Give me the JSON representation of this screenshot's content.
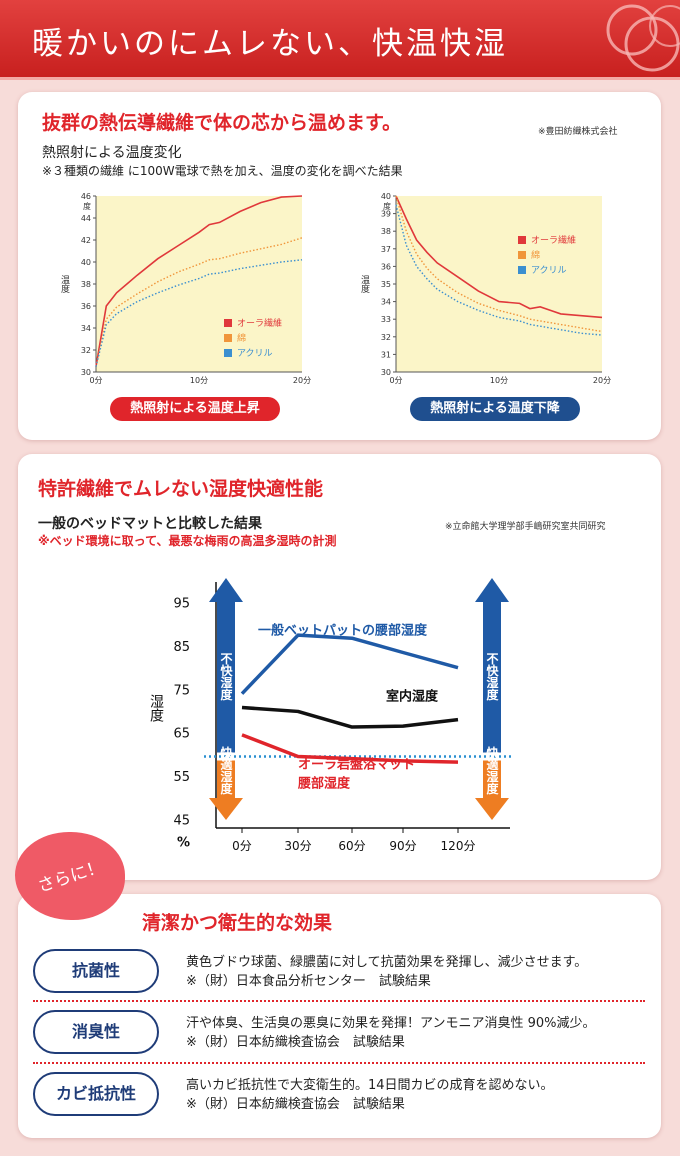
{
  "header": {
    "title": "暖かいのにムレない、快温快湿"
  },
  "section1": {
    "heading": "抜群の熱伝導繊維で体の芯から温めます。",
    "source": "※豊田紡織株式会社",
    "subtitle": "熱照射による温度変化",
    "note": "※３種類の繊維 に100W電球で熱を加え、温度の変化を調べた結果",
    "chart_data": [
      {
        "type": "line",
        "ylabel": "温度",
        "ylabel_unit": "度",
        "xlim": [
          0,
          20
        ],
        "ylim": [
          30,
          46
        ],
        "x_ticks": [
          "0分",
          "10分",
          "20分"
        ],
        "y_ticks": [
          "30",
          "32",
          "34",
          "36",
          "38",
          "40",
          "42",
          "44",
          "46"
        ],
        "x": [
          0,
          1,
          2,
          4,
          6,
          8,
          10,
          11,
          12,
          14,
          16,
          18,
          20
        ],
        "series": [
          {
            "name": "オーラ繊維",
            "color": "#e0383b",
            "style": "solid",
            "values": [
              30.5,
              36.0,
              37.2,
              38.8,
              40.3,
              41.5,
              42.7,
              43.4,
              43.6,
              44.6,
              45.4,
              45.9,
              46.0
            ]
          },
          {
            "name": "綿",
            "color": "#f0953a",
            "style": "dotted",
            "values": [
              30.5,
              34.8,
              35.9,
              37.1,
              38.2,
              39.1,
              39.8,
              40.2,
              40.3,
              40.8,
              41.2,
              41.6,
              42.2
            ]
          },
          {
            "name": "アクリル",
            "color": "#3b8fd0",
            "style": "dotted",
            "values": [
              30.5,
              34.3,
              35.3,
              36.4,
              37.2,
              37.9,
              38.5,
              38.9,
              39.0,
              39.4,
              39.7,
              40.0,
              40.2
            ]
          }
        ],
        "caption": "熱照射による温度上昇"
      },
      {
        "type": "line",
        "ylabel": "温度",
        "ylabel_unit": "度",
        "xlim": [
          0,
          20
        ],
        "ylim": [
          30,
          40
        ],
        "x_ticks": [
          "0分",
          "10分",
          "20分"
        ],
        "y_ticks": [
          "30",
          "31",
          "32",
          "33",
          "34",
          "35",
          "36",
          "37",
          "38",
          "39",
          "40"
        ],
        "x": [
          0,
          1,
          2,
          3,
          4,
          6,
          8,
          10,
          12,
          13,
          14,
          15,
          16,
          18,
          20
        ],
        "series": [
          {
            "name": "オーラ繊維",
            "color": "#e0383b",
            "style": "solid",
            "values": [
              40.0,
              38.7,
              37.5,
              36.8,
              36.2,
              35.4,
              34.6,
              34.0,
              33.9,
              33.6,
              33.7,
              33.5,
              33.3,
              33.2,
              33.1
            ]
          },
          {
            "name": "綿",
            "color": "#f0953a",
            "style": "dotted",
            "values": [
              40.0,
              38.0,
              36.7,
              35.9,
              35.3,
              34.5,
              33.9,
              33.5,
              33.2,
              33.0,
              32.9,
              32.8,
              32.7,
              32.5,
              32.3
            ]
          },
          {
            "name": "アクリル",
            "color": "#3b8fd0",
            "style": "dotted",
            "values": [
              39.5,
              37.2,
              36.0,
              35.3,
              34.7,
              34.0,
              33.5,
              33.1,
              32.9,
              32.7,
              32.6,
              32.5,
              32.4,
              32.2,
              32.1
            ]
          }
        ],
        "caption": "熱照射による温度下降"
      }
    ]
  },
  "section2": {
    "heading": "特許繊維でムレない湿度快適性能",
    "source": "※立命館大学理学部手嶋研究室共同研究",
    "subtitle": "一般のベッドマットと比較した結果",
    "note": "※ベッド環境に取って、最悪な梅雨の高温多湿時の計測",
    "chart_data": {
      "type": "line",
      "ylabel": "湿度",
      "yunit": "%",
      "xlim": [
        0,
        120
      ],
      "ylim": [
        45,
        95
      ],
      "x_ticks": [
        "0分",
        "30分",
        "60分",
        "90分",
        "120分"
      ],
      "y_ticks": [
        "95",
        "85",
        "75",
        "65",
        "55",
        "45"
      ],
      "threshold": 59.5,
      "upper_zone_label": "不快湿度",
      "lower_zone_label": "快適湿度",
      "x": [
        0,
        30,
        60,
        90,
        120
      ],
      "series": [
        {
          "name": "一般ベットパットの腰部湿度",
          "color": "#1f5aa6",
          "values": [
            74,
            87.5,
            86.8,
            83.5,
            80
          ]
        },
        {
          "name": "室内湿度",
          "color": "#111111",
          "values": [
            70.8,
            69.9,
            66.3,
            66.5,
            68.0
          ]
        },
        {
          "name_line1": "オーラ岩盤浴マット",
          "name_line2": "腰部湿度",
          "color": "#e0252b",
          "values": [
            64.5,
            59.5,
            59.0,
            58.5,
            58.2
          ]
        }
      ]
    }
  },
  "section3": {
    "badge": "さらに！",
    "heading": "清潔かつ衛生的な効果",
    "features": [
      {
        "label": "抗菌性",
        "desc1": "黄色ブドウ球菌、緑膿菌に対して抗菌効果を発揮し、減少させます。",
        "desc2": "※（財）日本食品分析センター　試験結果"
      },
      {
        "label": "消臭性",
        "desc1": "汗や体臭、生活臭の悪臭に効果を発揮！アンモニア消臭性 90%減少。",
        "desc2": "※（財）日本紡織検査協会　試験結果"
      },
      {
        "label": "カビ抵抗性",
        "desc1": "高いカビ抵抗性で大変衛生的。14日間カビの成育を認めない。",
        "desc2": "※（財）日本紡織検査協会　試験結果"
      }
    ]
  },
  "colors": {
    "accent_red": "#e0252b",
    "navy": "#1f3c78",
    "chart_bg": "#fbf5c8"
  }
}
